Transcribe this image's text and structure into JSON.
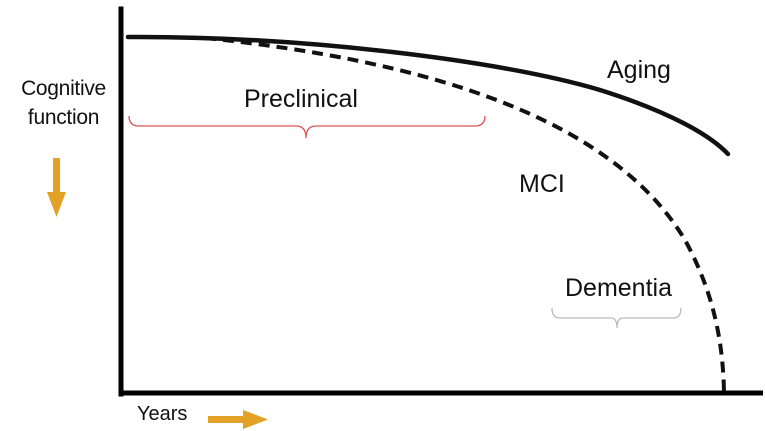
{
  "axes": {
    "y_label_lines": [
      "Cognitive",
      "function"
    ],
    "x_label": "Years"
  },
  "curves": {
    "aging_label": "Aging",
    "mci_label": "MCI"
  },
  "phases": {
    "preclinical_label": "Preclinical",
    "dementia_label": "Dementia"
  },
  "colors": {
    "arrow": "#E3A125",
    "preclinical_brace": "#D9534F",
    "dementia_brace": "#BBBBBB",
    "curve": "#111111"
  }
}
